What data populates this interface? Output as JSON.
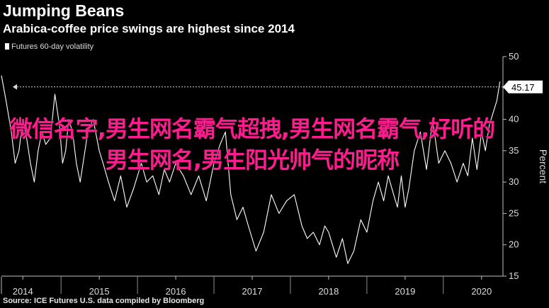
{
  "header": {
    "title": "Jumping Beans",
    "subtitle": "Arabica-coffee price swings are highest since 2014"
  },
  "footer": {
    "source": "Source: ICE Futures U.S. data compiled by Bloomberg"
  },
  "overlay": {
    "text": "微信名字,男生网名霸气超拽,男生网名霸气,好听的男生网名,男生阳光帅气的昵称"
  },
  "colors": {
    "background": "#000000",
    "line": "#ffffff",
    "overlay_text": "#ff1c8e"
  },
  "chart_data": {
    "type": "line",
    "title": "Jumping Beans",
    "subtitle": "Arabica-coffee price swings are highest since 2014",
    "ylabel": "Percent",
    "ylim": [
      15,
      50
    ],
    "y_axis_side": "right",
    "y_ticks": [
      15,
      20,
      25,
      30,
      35,
      40,
      45,
      50
    ],
    "x_ticks": [
      "2014",
      "2015",
      "2016",
      "2017",
      "2018",
      "2019",
      "2020"
    ],
    "x_tick_positions": [
      2014.0,
      2015.0,
      2016.0,
      2017.0,
      2018.0,
      2019.0,
      2020.0
    ],
    "xlim": [
      2013.72,
      2020.28
    ],
    "grid": false,
    "legend": {
      "position": "top-left",
      "entries": [
        "Futures 60-day volatility"
      ]
    },
    "series": [
      {
        "name": "Futures 60-day volatility",
        "x": [
          2013.72,
          2013.78,
          2013.85,
          2013.9,
          2013.95,
          2014.0,
          2014.05,
          2014.1,
          2014.15,
          2014.2,
          2014.25,
          2014.3,
          2014.36,
          2014.42,
          2014.48,
          2014.52,
          2014.56,
          2014.6,
          2014.65,
          2014.7,
          2014.75,
          2014.8,
          2014.85,
          2014.92,
          2015.0,
          2015.05,
          2015.12,
          2015.2,
          2015.28,
          2015.36,
          2015.45,
          2015.55,
          2015.62,
          2015.7,
          2015.78,
          2015.85,
          2015.92,
          2016.0,
          2016.1,
          2016.2,
          2016.3,
          2016.4,
          2016.5,
          2016.58,
          2016.65,
          2016.72,
          2016.8,
          2016.88,
          2016.95,
          2017.05,
          2017.15,
          2017.25,
          2017.35,
          2017.45,
          2017.55,
          2017.65,
          2017.72,
          2017.8,
          2017.88,
          2017.95,
          2018.0,
          2018.05,
          2018.1,
          2018.18,
          2018.25,
          2018.33,
          2018.42,
          2018.5,
          2018.58,
          2018.65,
          2018.72,
          2018.78,
          2018.85,
          2018.9,
          2018.95,
          2019.0,
          2019.05,
          2019.12,
          2019.2,
          2019.28,
          2019.36,
          2019.44,
          2019.52,
          2019.6,
          2019.68,
          2019.76,
          2019.82,
          2019.88,
          2019.94,
          2020.0,
          2020.05,
          2020.1,
          2020.15,
          2020.2,
          2020.24
        ],
        "y": [
          47,
          43,
          38,
          33,
          35,
          40,
          37,
          33,
          30,
          35,
          38,
          36,
          37,
          44,
          39,
          33,
          35,
          40,
          38,
          33,
          30,
          34,
          38,
          40,
          35,
          33,
          30,
          27,
          31,
          26,
          29,
          33,
          30,
          31,
          28,
          32,
          30,
          33,
          31,
          28,
          31,
          27,
          33,
          36,
          38,
          28,
          24,
          26,
          23,
          19,
          22,
          28,
          25,
          27,
          28,
          23,
          21,
          22,
          20,
          23,
          22,
          20,
          18,
          21,
          17,
          19,
          24,
          22,
          27,
          30,
          27,
          31,
          28,
          26,
          31,
          26,
          29,
          35,
          38,
          32,
          40,
          33,
          35,
          33,
          30,
          33,
          31,
          37,
          32,
          38,
          35,
          39,
          41,
          43,
          46
        ]
      }
    ],
    "callout": {
      "value": "45.17"
    }
  }
}
